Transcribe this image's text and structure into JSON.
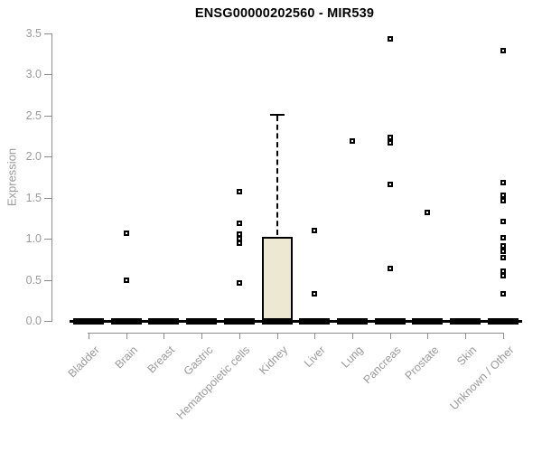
{
  "title": "ENSG00000202560 - MIR539",
  "colors": {
    "title": "#000000",
    "axis": "#8c8c8c",
    "tick_label": "#9a9a9a",
    "box_fill": "#ede8d1",
    "marker": "#000000"
  },
  "chart_data": {
    "type": "boxplot",
    "title": "ENSG00000202560 - MIR539",
    "xlabel": "",
    "ylabel": "Expression",
    "ylim": [
      0,
      3.5
    ],
    "yticks": [
      0.0,
      0.5,
      1.0,
      1.5,
      2.0,
      2.5,
      3.0,
      3.5
    ],
    "grid": false,
    "legend": "none",
    "categories": [
      "Bladder",
      "Brain",
      "Breast",
      "Gastric",
      "Hematopoietic cells",
      "Kidney",
      "Liver",
      "Lung",
      "Pancreas",
      "Prostate",
      "Skin",
      "Unknown / Other"
    ],
    "boxes": [
      {
        "whisker_low": 0,
        "q1": 0,
        "median": 0,
        "q3": 0,
        "whisker_high": 0
      },
      {
        "whisker_low": 0,
        "q1": 0,
        "median": 0,
        "q3": 0,
        "whisker_high": 0
      },
      {
        "whisker_low": 0,
        "q1": 0,
        "median": 0,
        "q3": 0,
        "whisker_high": 0
      },
      {
        "whisker_low": 0,
        "q1": 0,
        "median": 0,
        "q3": 0,
        "whisker_high": 0
      },
      {
        "whisker_low": 0,
        "q1": 0,
        "median": 0,
        "q3": 0,
        "whisker_high": 0
      },
      {
        "whisker_low": 0,
        "q1": 0,
        "median": 0,
        "q3": 1.02,
        "whisker_high": 2.52
      },
      {
        "whisker_low": 0,
        "q1": 0,
        "median": 0,
        "q3": 0,
        "whisker_high": 0
      },
      {
        "whisker_low": 0,
        "q1": 0,
        "median": 0,
        "q3": 0,
        "whisker_high": 0
      },
      {
        "whisker_low": 0,
        "q1": 0,
        "median": 0,
        "q3": 0,
        "whisker_high": 0
      },
      {
        "whisker_low": 0,
        "q1": 0,
        "median": 0,
        "q3": 0,
        "whisker_high": 0
      },
      {
        "whisker_low": 0,
        "q1": 0,
        "median": 0,
        "q3": 0,
        "whisker_high": 0
      },
      {
        "whisker_low": 0,
        "q1": 0,
        "median": 0,
        "q3": 0,
        "whisker_high": 0
      }
    ],
    "outliers": [
      [],
      [
        1.07,
        0.5
      ],
      [],
      [],
      [
        1.57,
        1.19,
        1.06,
        1.0,
        0.95,
        0.46
      ],
      [],
      [
        1.1,
        0.33
      ],
      [
        2.19
      ],
      [
        3.43,
        2.23,
        2.17,
        1.66,
        0.64
      ],
      [
        1.32
      ],
      [],
      [
        3.29,
        1.68,
        1.53,
        1.46,
        1.21,
        1.01,
        0.91,
        0.85,
        0.77,
        0.61,
        0.55,
        0.33
      ]
    ]
  }
}
